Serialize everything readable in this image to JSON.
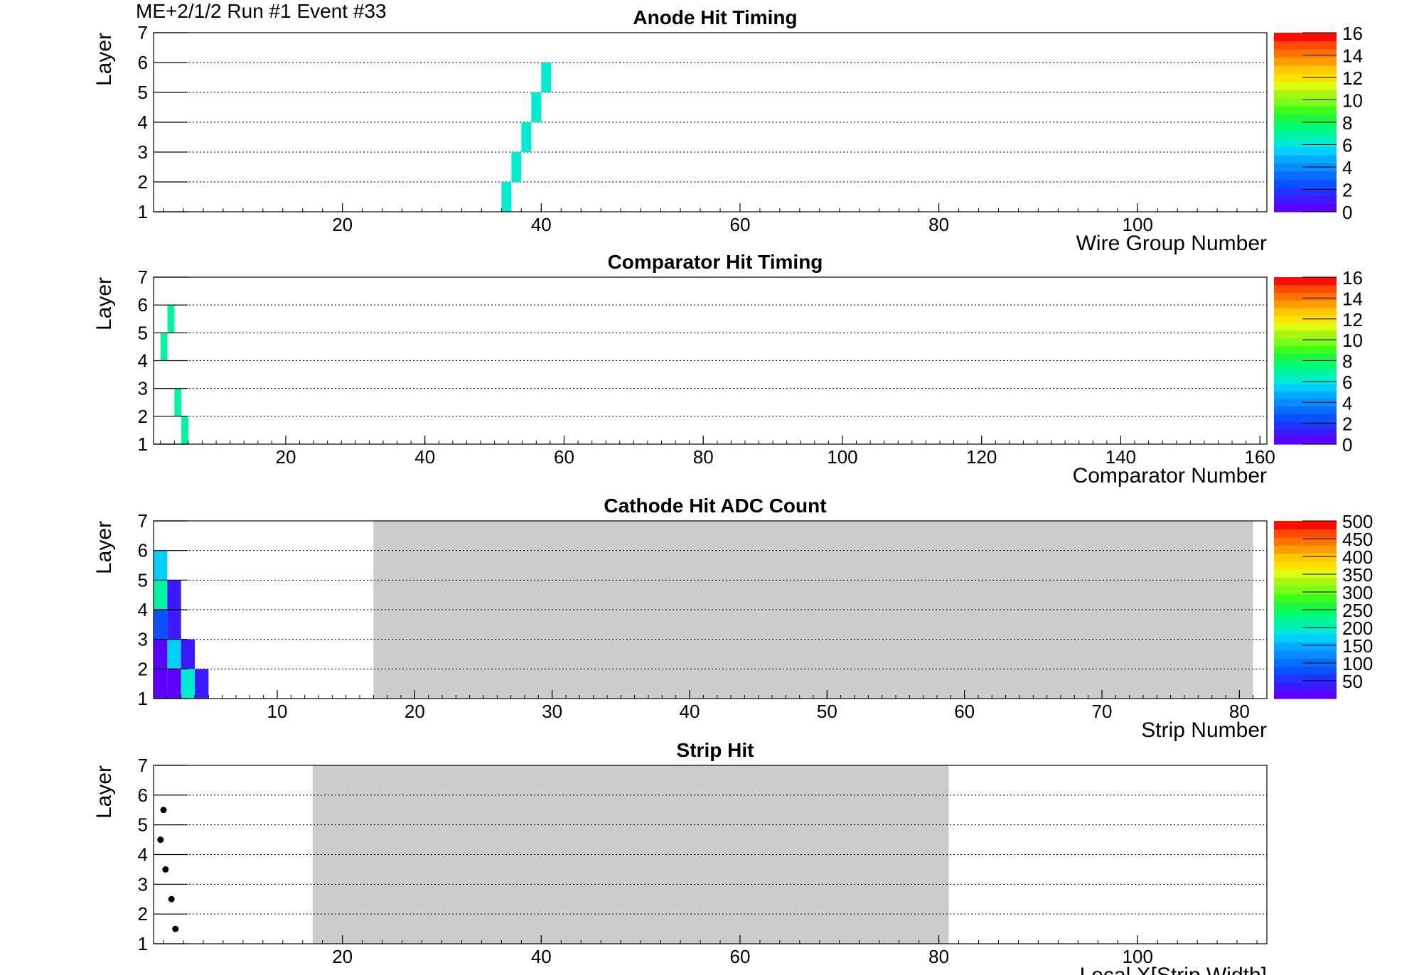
{
  "header": "ME+2/1/2   Run #1  Event #33",
  "colors": {
    "palette": [
      "#5c00ff",
      "#3c19ff",
      "#2232ff",
      "#0b52ff",
      "#066eff",
      "#0a8cff",
      "#00aaff",
      "#00cfff",
      "#00ecd0",
      "#00f5a0",
      "#00ff70",
      "#1cf542",
      "#3eff1a",
      "#7cff16",
      "#a8f511",
      "#ddff0f",
      "#ffe000",
      "#ffc800",
      "#ff9c00",
      "#ff7200",
      "#ff4a00",
      "#ff0a00"
    ],
    "inactive_region": "#cccccc",
    "marker": "#000000"
  },
  "chart_data": [
    {
      "type": "heatmap",
      "title": "Anode Hit Timing",
      "xlabel": "Wire Group Number",
      "ylabel": "Layer",
      "xlim": [
        1,
        113
      ],
      "ylim": [
        1,
        7
      ],
      "xticks": [
        20,
        40,
        60,
        80,
        100
      ],
      "yticks": [
        1,
        2,
        3,
        4,
        5,
        6,
        7
      ],
      "grid": "y",
      "zlim": [
        0,
        16
      ],
      "zticks": [
        0,
        2,
        4,
        6,
        8,
        10,
        12,
        14,
        16
      ],
      "cells": [
        {
          "x": 36,
          "layer": 1,
          "z": 6
        },
        {
          "x": 37,
          "layer": 2,
          "z": 6
        },
        {
          "x": 38,
          "layer": 3,
          "z": 6
        },
        {
          "x": 39,
          "layer": 4,
          "z": 6
        },
        {
          "x": 40,
          "layer": 5,
          "z": 6
        }
      ],
      "gray_regions": []
    },
    {
      "type": "heatmap",
      "title": "Comparator Hit Timing",
      "xlabel": "Comparator Number",
      "ylabel": "Layer",
      "xlim": [
        1,
        161
      ],
      "ylim": [
        1,
        7
      ],
      "xticks": [
        20,
        40,
        60,
        80,
        100,
        120,
        140,
        160
      ],
      "yticks": [
        1,
        2,
        3,
        4,
        5,
        6,
        7
      ],
      "grid": "y",
      "zlim": [
        0,
        16
      ],
      "zticks": [
        0,
        2,
        4,
        6,
        8,
        10,
        12,
        14,
        16
      ],
      "cells": [
        {
          "x": 5,
          "layer": 1,
          "z": 7
        },
        {
          "x": 4,
          "layer": 2,
          "z": 7
        },
        {
          "x": 2,
          "layer": 4,
          "z": 7
        },
        {
          "x": 3,
          "layer": 5,
          "z": 7
        }
      ],
      "gray_regions": []
    },
    {
      "type": "heatmap",
      "title": "Cathode Hit ADC Count",
      "xlabel": "Strip Number",
      "ylabel": "Layer",
      "xlim": [
        1,
        82
      ],
      "ylim": [
        1,
        7
      ],
      "xticks": [
        10,
        20,
        30,
        40,
        50,
        60,
        70,
        80
      ],
      "yticks": [
        1,
        2,
        3,
        4,
        5,
        6,
        7
      ],
      "grid": "y",
      "zlim": [
        0,
        500
      ],
      "zticks": [
        50,
        100,
        150,
        200,
        250,
        300,
        350,
        400,
        450,
        500
      ],
      "cells": [
        {
          "x": 1,
          "layer": 1,
          "z": 0
        },
        {
          "x": 2,
          "layer": 1,
          "z": 5
        },
        {
          "x": 3,
          "layer": 1,
          "z": 195
        },
        {
          "x": 4,
          "layer": 1,
          "z": 30
        },
        {
          "x": 1,
          "layer": 2,
          "z": 5
        },
        {
          "x": 2,
          "layer": 2,
          "z": 165
        },
        {
          "x": 3,
          "layer": 2,
          "z": 40
        },
        {
          "x": 1,
          "layer": 3,
          "z": 90
        },
        {
          "x": 2,
          "layer": 3,
          "z": 45
        },
        {
          "x": 1,
          "layer": 4,
          "z": 205
        },
        {
          "x": 2,
          "layer": 4,
          "z": 40
        },
        {
          "x": 1,
          "layer": 5,
          "z": 160
        }
      ],
      "gray_regions": [
        {
          "x_from": 17,
          "x_to": 81
        }
      ]
    },
    {
      "type": "scatter",
      "title": "Strip Hit",
      "xlabel": "Local X[Strip Width]",
      "ylabel": "Layer",
      "xlim": [
        1,
        113
      ],
      "ylim": [
        1,
        7
      ],
      "xticks": [
        20,
        40,
        60,
        80,
        100
      ],
      "yticks": [
        1,
        2,
        3,
        4,
        5,
        6,
        7
      ],
      "grid": "y",
      "points": [
        {
          "x": 3.2,
          "y": 1.5
        },
        {
          "x": 2.8,
          "y": 2.5
        },
        {
          "x": 2.2,
          "y": 3.5
        },
        {
          "x": 1.7,
          "y": 4.5
        },
        {
          "x": 2.0,
          "y": 5.5
        }
      ],
      "gray_regions": [
        {
          "x_from": 17,
          "x_to": 81
        }
      ]
    }
  ]
}
